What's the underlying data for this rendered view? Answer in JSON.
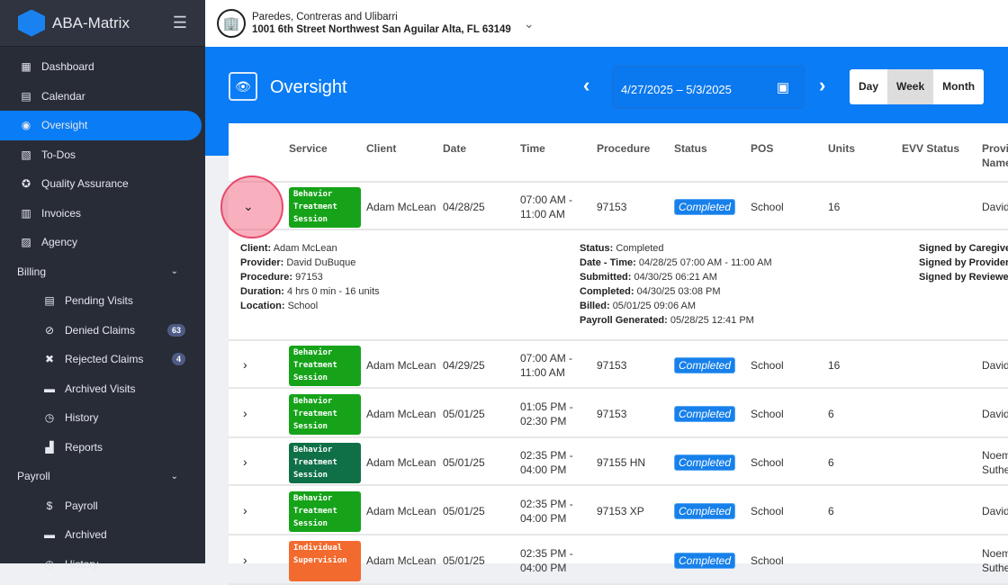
{
  "app": {
    "name": "ABA-Matrix"
  },
  "org": {
    "name": "Paredes, Contreras and Ulibarri",
    "address": "1001 6th Street Northwest San Aguilar Alta, FL 63149"
  },
  "sidebar": {
    "items": [
      {
        "label": "Dashboard",
        "icon": "dashboard-icon",
        "type": "item"
      },
      {
        "label": "Calendar",
        "icon": "calendar-icon",
        "type": "item"
      },
      {
        "label": "Oversight",
        "icon": "eye-icon",
        "type": "item",
        "active": true
      },
      {
        "label": "To-Dos",
        "icon": "todo-icon",
        "type": "item"
      },
      {
        "label": "Quality Assurance",
        "icon": "badge-check-icon",
        "type": "item"
      },
      {
        "label": "Invoices",
        "icon": "invoice-icon",
        "type": "item"
      },
      {
        "label": "Agency",
        "icon": "agency-icon",
        "type": "item"
      },
      {
        "label": "Billing",
        "type": "section"
      },
      {
        "label": "Pending Visits",
        "icon": "pending-icon",
        "type": "sub"
      },
      {
        "label": "Denied Claims",
        "icon": "ban-icon",
        "type": "sub",
        "badge": "63"
      },
      {
        "label": "Rejected Claims",
        "icon": "x-icon",
        "type": "sub",
        "badge": "4"
      },
      {
        "label": "Archived Visits",
        "icon": "archive-icon",
        "type": "sub"
      },
      {
        "label": "History",
        "icon": "history-icon",
        "type": "sub"
      },
      {
        "label": "Reports",
        "icon": "reports-icon",
        "type": "sub"
      },
      {
        "label": "Payroll",
        "type": "section"
      },
      {
        "label": "Payroll",
        "icon": "payroll-icon",
        "type": "sub"
      },
      {
        "label": "Archived",
        "icon": "archive-icon",
        "type": "sub"
      },
      {
        "label": "History",
        "icon": "history-icon",
        "type": "sub"
      }
    ]
  },
  "page": {
    "title": "Oversight",
    "date_range": "4/27/2025 – 5/3/2025",
    "views": [
      "Day",
      "Week",
      "Month"
    ],
    "selected_view": "Week"
  },
  "table": {
    "headers": [
      "Service",
      "Client",
      "Date",
      "Time",
      "Procedure",
      "Status",
      "POS",
      "Units",
      "EVV Status",
      "Provider Name"
    ],
    "rows": [
      {
        "service": "Behavior Treatment Session",
        "service_color": "#16a31a",
        "client": "Adam McLean",
        "date": "04/28/25",
        "time1": "07:00 AM -",
        "time2": "11:00 AM",
        "procedure": "97153",
        "status": "Completed",
        "pos": "School",
        "units": "16",
        "provider": "David",
        "expanded": true
      },
      {
        "service": "Behavior Treatment Session",
        "service_color": "#16a31a",
        "client": "Adam McLean",
        "date": "04/29/25",
        "time1": "07:00 AM -",
        "time2": "11:00 AM",
        "procedure": "97153",
        "status": "Completed",
        "pos": "School",
        "units": "16",
        "provider": "David"
      },
      {
        "service": "Behavior Treatment Session",
        "service_color": "#16a31a",
        "client": "Adam McLean",
        "date": "05/01/25",
        "time1": "01:05 PM -",
        "time2": "02:30 PM",
        "procedure": "97153",
        "status": "Completed",
        "pos": "School",
        "units": "6",
        "provider": "David"
      },
      {
        "service": "Behavior Treatment Session",
        "service_color": "#0f7048",
        "client": "Adam McLean",
        "date": "05/01/25",
        "time1": "02:35 PM -",
        "time2": "04:00 PM",
        "procedure": "97155 HN",
        "status": "Completed",
        "pos": "School",
        "units": "6",
        "provider": "Noem Suthe"
      },
      {
        "service": "Behavior Treatment Session",
        "service_color": "#16a31a",
        "client": "Adam McLean",
        "date": "05/01/25",
        "time1": "02:35 PM -",
        "time2": "04:00 PM",
        "procedure": "97153 XP",
        "status": "Completed",
        "pos": "School",
        "units": "6",
        "provider": "David"
      },
      {
        "service": "Individual Supervision",
        "service_color": "#f26a2e",
        "client": "Adam McLean",
        "date": "05/01/25",
        "time1": "02:35 PM -",
        "time2": "04:00 PM",
        "procedure": "",
        "status": "Completed",
        "pos": "School",
        "units": "",
        "provider": "Noem Suthe"
      }
    ]
  },
  "detail": {
    "left": [
      [
        "Client:",
        "Adam McLean"
      ],
      [
        "Provider:",
        "David DuBuque"
      ],
      [
        "Procedure:",
        "97153"
      ],
      [
        "Duration:",
        "4 hrs 0 min - 16 units"
      ],
      [
        "Location:",
        "School"
      ]
    ],
    "middle": [
      [
        "Status:",
        "Completed"
      ],
      [
        "Date - Time:",
        "04/28/25 07:00 AM - 11:00 AM"
      ],
      [
        "Submitted:",
        "04/30/25 06:21 AM"
      ],
      [
        "Completed:",
        "04/30/25 03:08 PM"
      ],
      [
        "Billed:",
        "05/01/25 09:06 AM"
      ],
      [
        "Payroll Generated:",
        "05/28/25 12:41 PM"
      ]
    ],
    "right": [
      [
        "Signed by Caregiver",
        ""
      ],
      [
        "Signed by Provider:",
        ""
      ],
      [
        "Signed by Reviewer:",
        ""
      ]
    ]
  },
  "colors": {
    "primary": "#0a7cf5",
    "sidebar": "#282c37",
    "status": "#1780ea"
  }
}
